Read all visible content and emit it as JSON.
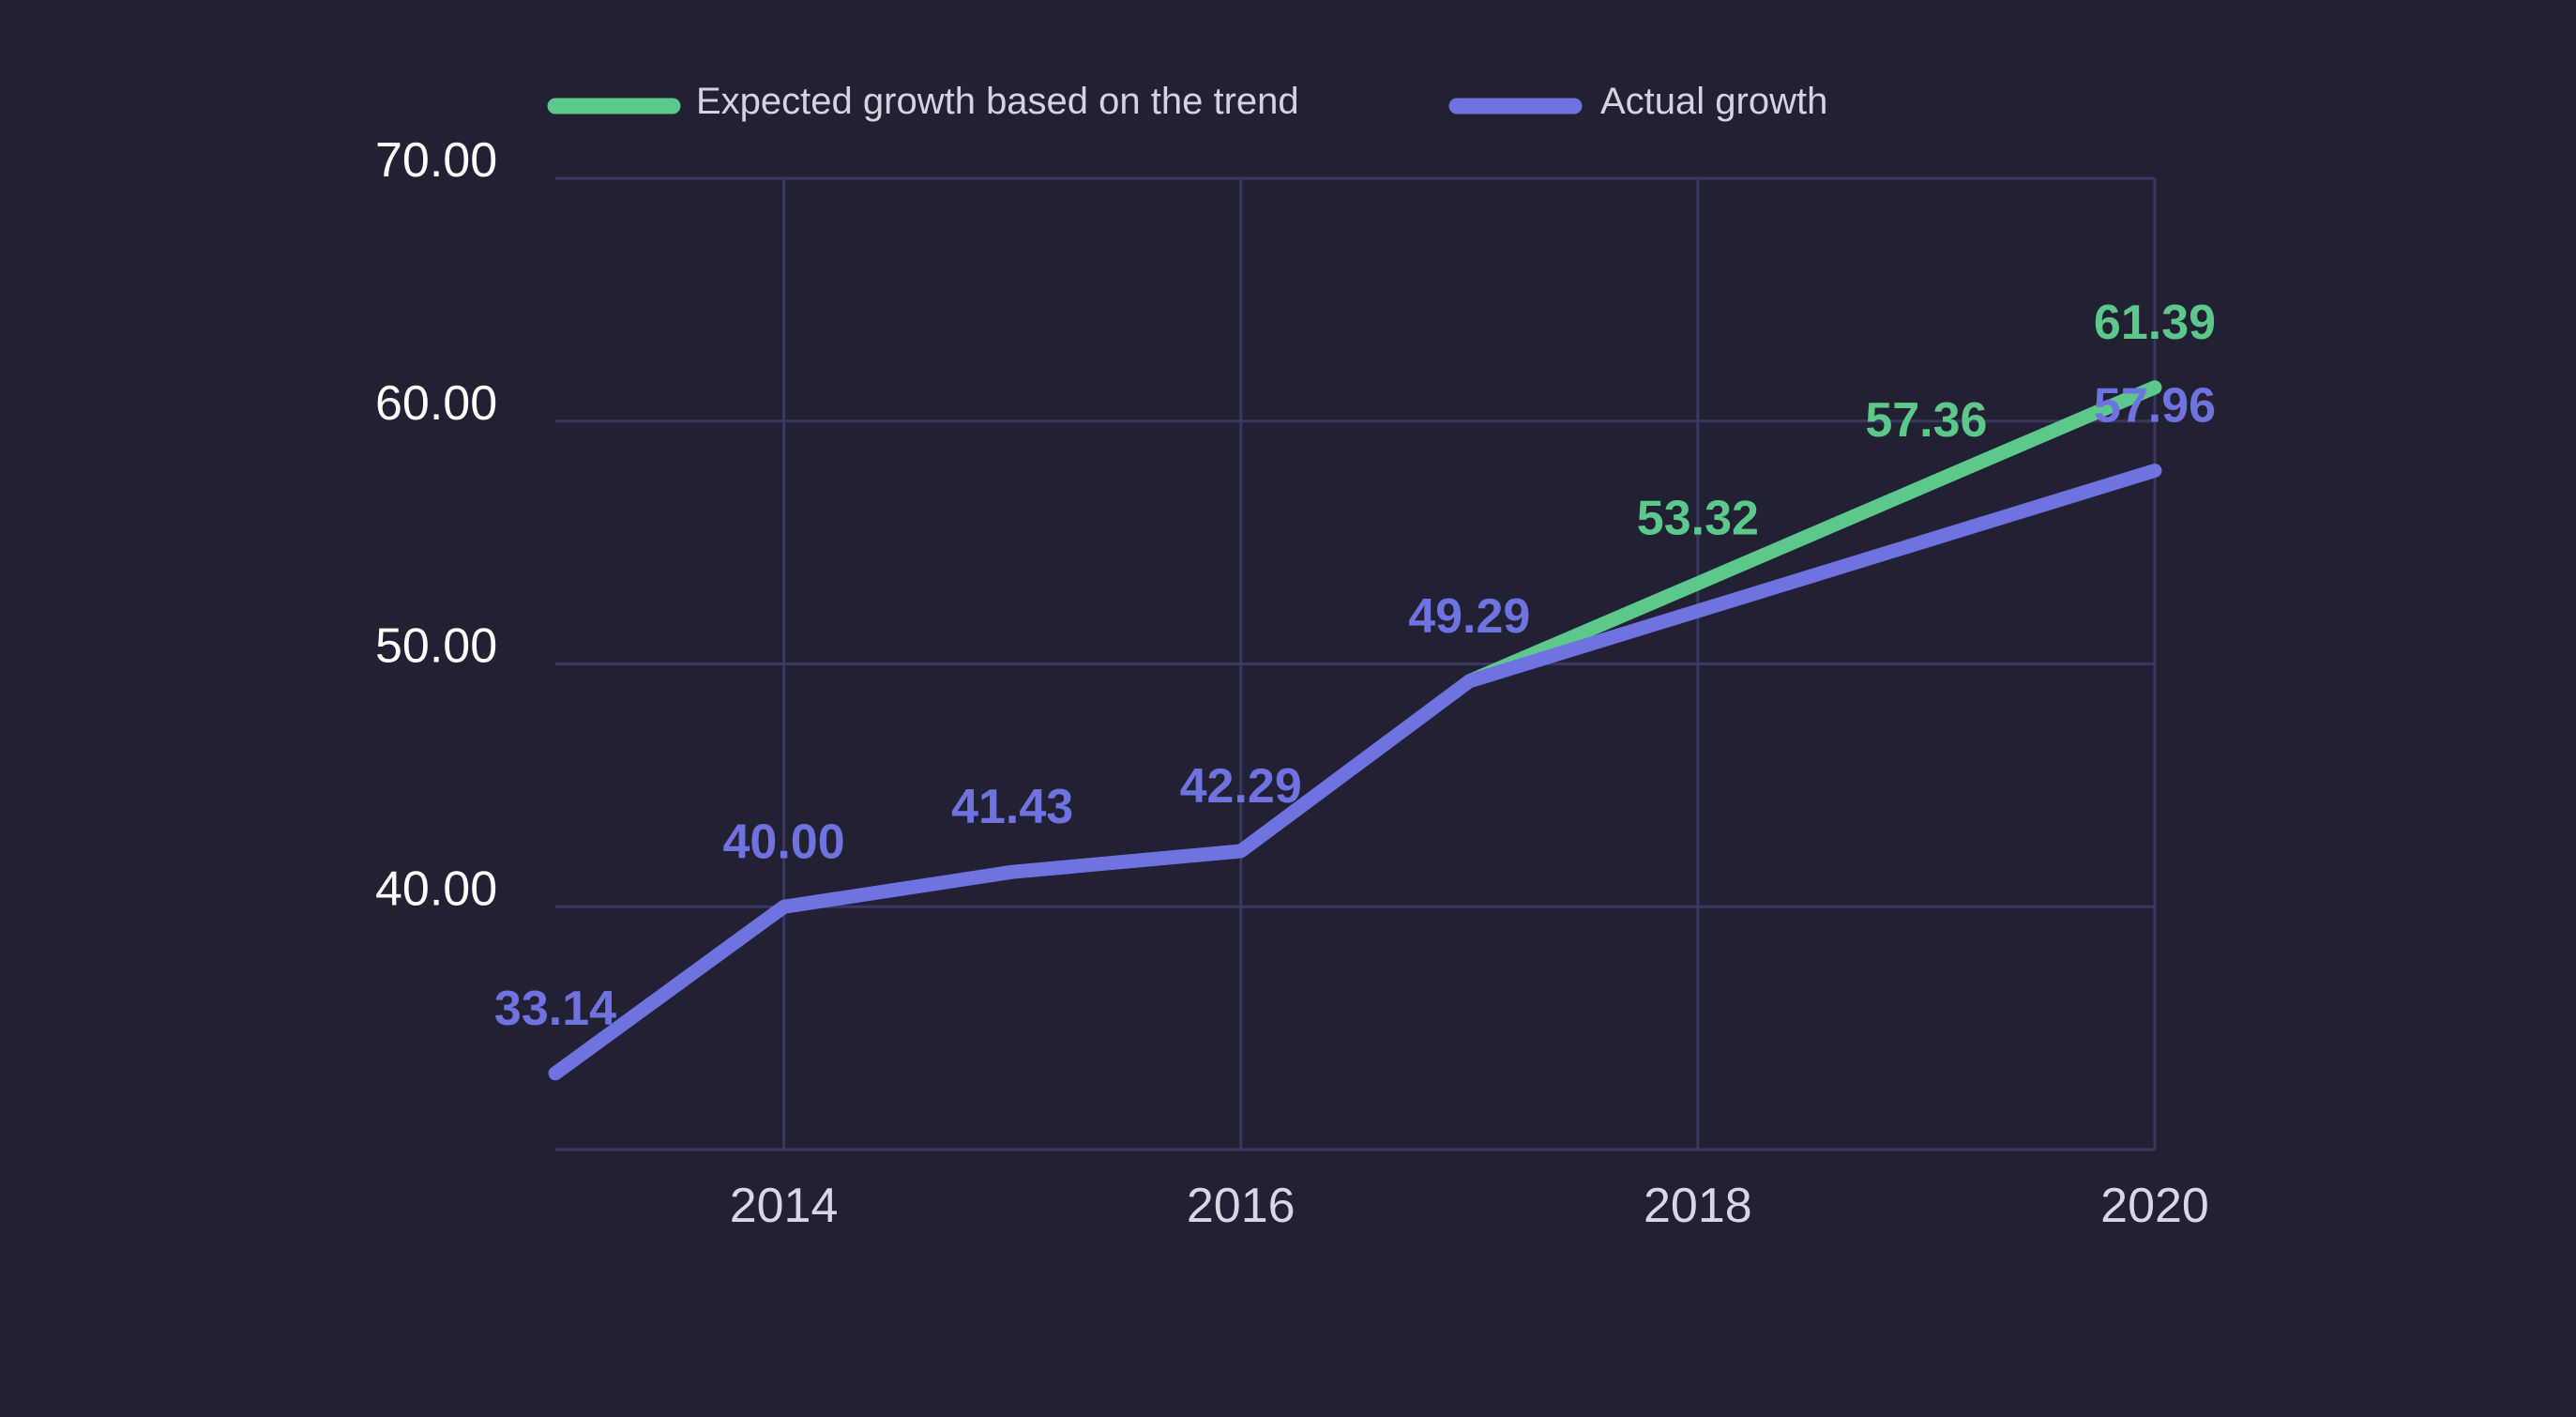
{
  "chart_data": {
    "type": "line",
    "x": [
      2013,
      2014,
      2015,
      2016,
      2017,
      2018,
      2019,
      2020
    ],
    "xticks": [
      "2014",
      "2016",
      "2018",
      "2020"
    ],
    "yticks": [
      "40.00",
      "50.00",
      "60.00",
      "70.00"
    ],
    "ylim": [
      30,
      70
    ],
    "xlim": [
      2013,
      2020
    ],
    "grid": true,
    "legend_position": "top-left",
    "series": [
      {
        "name": "Expected growth based on the trend",
        "color": "#5cc98a",
        "x": [
          2017,
          2018,
          2019,
          2020
        ],
        "values": [
          49.29,
          53.32,
          57.36,
          61.39
        ],
        "labels": [
          "53.32",
          "57.36",
          "61.39"
        ]
      },
      {
        "name": "Actual growth",
        "color": "#6f73e0",
        "x": [
          2013,
          2014,
          2015,
          2016,
          2017,
          2020
        ],
        "values": [
          33.14,
          40.0,
          41.43,
          42.29,
          49.29,
          57.96
        ],
        "labels": [
          "33.14",
          "40.00",
          "41.43",
          "42.29",
          "49.29",
          "57.96"
        ]
      }
    ]
  }
}
